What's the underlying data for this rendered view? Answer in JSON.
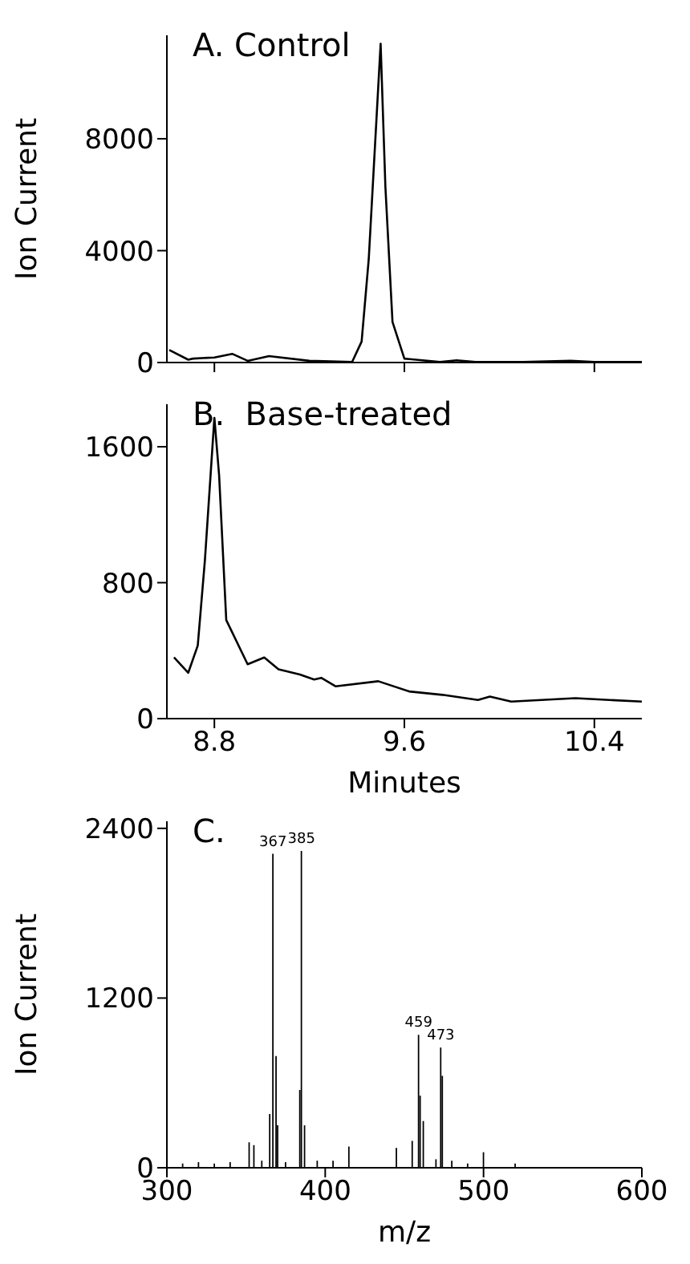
{
  "chart_data": [
    {
      "type": "line",
      "title": "A. Control",
      "ylabel": "Ion Current",
      "tick_labels": "y",
      "xlim": [
        8.6,
        10.6
      ],
      "xticks": [
        {
          "value": 8.8,
          "label": null
        },
        {
          "value": 9.6,
          "label": null
        },
        {
          "value": 10.4,
          "label": null
        }
      ],
      "ylim": [
        0,
        11700
      ],
      "yticks": [
        0,
        4000,
        8000
      ],
      "marker": "none",
      "series": [
        {
          "color": "#000000",
          "x": [
            8.61,
            8.69,
            8.71,
            8.8,
            8.875,
            8.94,
            9.03,
            9.2,
            9.38,
            9.42,
            9.45,
            9.5,
            9.52,
            9.55,
            9.6,
            9.75,
            9.82,
            9.9,
            10.1,
            10.3,
            10.4,
            10.6
          ],
          "values": [
            450,
            100,
            140,
            180,
            310,
            60,
            230,
            60,
            20,
            750,
            3700,
            11400,
            6300,
            1450,
            140,
            20,
            80,
            20,
            20,
            60,
            20,
            20
          ]
        }
      ]
    },
    {
      "type": "line",
      "title": "B.  Base-treated",
      "xlabel": "Minutes",
      "xlim": [
        8.6,
        10.6
      ],
      "xticks": [
        8.8,
        9.6,
        10.4
      ],
      "ylim": [
        0,
        1850
      ],
      "yticks": [
        0,
        800,
        1600
      ],
      "marker": "none",
      "series": [
        {
          "color": "#000000",
          "x": [
            8.63,
            8.69,
            8.73,
            8.76,
            8.8,
            8.82,
            8.85,
            8.94,
            9.01,
            9.07,
            9.16,
            9.22,
            9.25,
            9.31,
            9.49,
            9.62,
            9.76,
            9.91,
            9.96,
            10.05,
            10.32,
            10.6
          ],
          "values": [
            360,
            270,
            430,
            930,
            1770,
            1430,
            580,
            320,
            360,
            290,
            260,
            230,
            240,
            190,
            220,
            160,
            140,
            110,
            130,
            100,
            120,
            100
          ]
        }
      ]
    },
    {
      "type": "bar",
      "title": "C.",
      "xlabel": "m/z",
      "ylabel": "Ion Current",
      "xlim": [
        300,
        600
      ],
      "xticks": [
        300,
        400,
        500,
        600
      ],
      "ylim": [
        0,
        2450
      ],
      "yticks": [
        0,
        1200,
        2400
      ],
      "x": [
        310,
        320,
        330,
        340,
        352,
        355,
        360,
        365,
        367,
        369,
        370,
        375,
        384,
        385,
        387,
        395,
        405,
        415,
        445,
        455,
        459,
        460,
        462,
        470,
        473,
        474,
        480,
        490,
        500,
        520
      ],
      "values": [
        30,
        40,
        30,
        40,
        180,
        160,
        50,
        380,
        2220,
        790,
        300,
        40,
        550,
        2240,
        300,
        50,
        50,
        150,
        140,
        190,
        940,
        510,
        330,
        60,
        850,
        650,
        50,
        30,
        110,
        30
      ],
      "color": "#000000",
      "annotations": [
        {
          "text": "367",
          "x": 367,
          "y": 2220
        },
        {
          "text": "385",
          "x": 385,
          "y": 2240
        },
        {
          "text": "459",
          "x": 459,
          "y": 940
        },
        {
          "text": "473",
          "x": 473,
          "y": 850
        }
      ]
    }
  ]
}
